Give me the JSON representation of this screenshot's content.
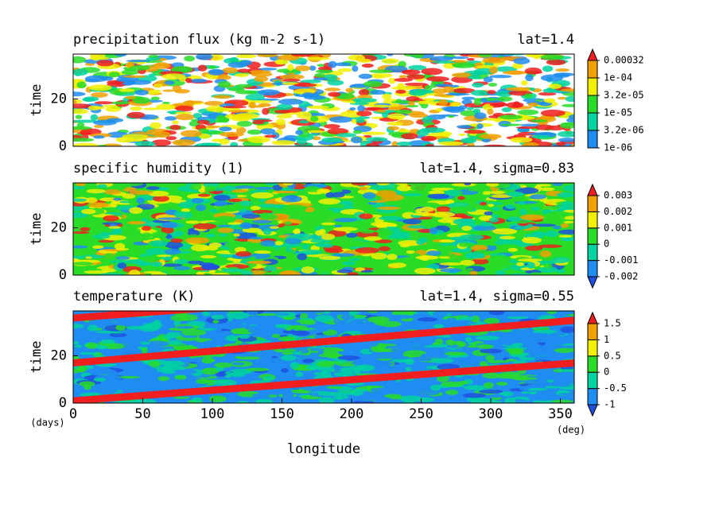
{
  "chart_data": [
    {
      "type": "contour",
      "title": "precipitation flux (kg m-2 s-1)",
      "subtitle": "lat=1.4",
      "ylabel": "time",
      "xlim": [
        0,
        360
      ],
      "ylim": [
        0,
        39
      ],
      "yticks": [
        0,
        20
      ],
      "field_color": "#ffffff",
      "levels": [
        {
          "value": 1e-06,
          "label": "1e-06"
        },
        {
          "value": 3.2e-06,
          "label": "3.2e-06"
        },
        {
          "value": 1e-05,
          "label": "1e-05"
        },
        {
          "value": 3.2e-05,
          "label": "3.2e-05"
        },
        {
          "value": 0.0001,
          "label": "1e-04"
        },
        0.00032
      ],
      "colors": [
        "#1e8cf0",
        "#00d2a0",
        "#28dc28",
        "#f0f000",
        "#f0a000",
        "#f01e1e"
      ],
      "extend": "max"
    },
    {
      "type": "contour",
      "title": "specific humidity (1)",
      "subtitle": "lat=1.4, sigma=0.83",
      "ylabel": "time",
      "xlim": [
        0,
        360
      ],
      "ylim": [
        0,
        39
      ],
      "yticks": [
        0,
        20
      ],
      "field_color": "#28dc28",
      "levels": [
        -0.002,
        -0.001,
        0,
        0.001,
        0.002,
        0.003
      ],
      "colors": [
        "#2050e0",
        "#1e8cf0",
        "#00d2a0",
        "#28dc28",
        "#f0f000",
        "#f0a000",
        "#f01e1e"
      ],
      "extend": "both"
    },
    {
      "type": "contour",
      "title": "temperature (K)",
      "subtitle": "lat=1.4, sigma=0.55",
      "ylabel": "time",
      "xlim": [
        0,
        360
      ],
      "ylim": [
        0,
        39
      ],
      "yticks": [
        0,
        20
      ],
      "field_color": "#1e8cf0",
      "xticks": [
        0,
        50,
        100,
        150,
        200,
        250,
        300,
        350
      ],
      "xlabel": "longitude",
      "xunit": "(deg)",
      "yunit": "(days)",
      "levels": [
        -1,
        -0.5,
        0,
        0.5,
        1,
        1.5
      ],
      "colors": [
        "#2050e0",
        "#1e8cf0",
        "#00d2a0",
        "#28dc28",
        "#f0f000",
        "#f0a000",
        "#f01e1e"
      ],
      "extend": "both"
    }
  ]
}
